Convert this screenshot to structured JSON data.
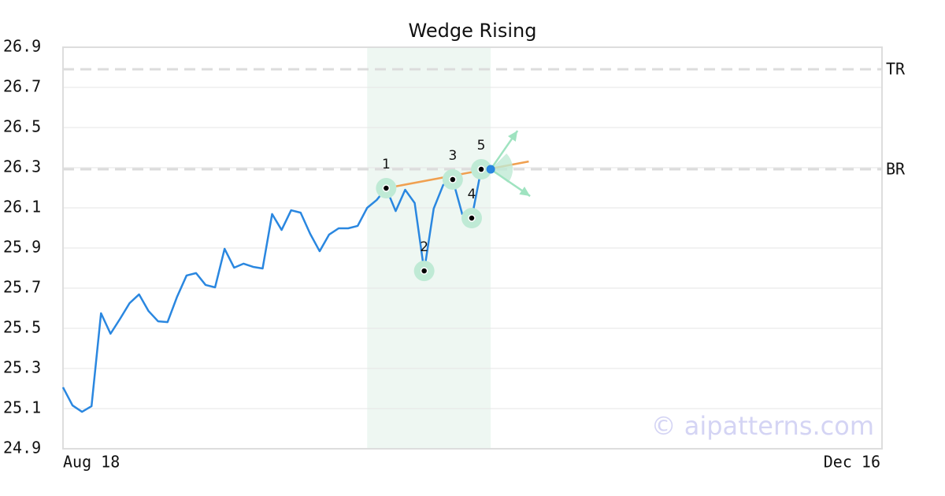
{
  "chart_data": {
    "type": "line",
    "title": "Wedge Rising",
    "watermark": "© aipatterns.com",
    "categories": [
      "Aug 18",
      null,
      null,
      null,
      null,
      null,
      null,
      null,
      null,
      null,
      null,
      null,
      null,
      null,
      null,
      null,
      null,
      null,
      null,
      null,
      null,
      null,
      null,
      null,
      null,
      null,
      null,
      null,
      null,
      null,
      null,
      null,
      null,
      null,
      null,
      null,
      null,
      null,
      null,
      null,
      null,
      null,
      null,
      null,
      null,
      null,
      null,
      null,
      null,
      null,
      null,
      null,
      null,
      null,
      null,
      null,
      null,
      null,
      null,
      null,
      null,
      null,
      null,
      null,
      null,
      null,
      null,
      null,
      null,
      null,
      null,
      null,
      null,
      null,
      null,
      null,
      null,
      null,
      null,
      null,
      null,
      null,
      null,
      null,
      null,
      null,
      "Dec 16"
    ],
    "series": [
      {
        "color": "#2a87e0",
        "values": [
          25.206,
          25.116,
          25.084,
          25.112,
          25.575,
          25.473,
          25.547,
          25.625,
          25.669,
          25.586,
          25.535,
          25.531,
          25.657,
          25.763,
          25.775,
          25.716,
          25.704,
          25.896,
          25.802,
          25.822,
          25.806,
          25.798,
          26.069,
          25.99,
          26.088,
          26.076,
          25.971,
          25.884,
          25.967,
          25.998,
          25.998,
          26.01,
          26.1,
          26.139,
          26.198,
          26.084,
          26.19,
          26.124,
          25.786,
          26.096,
          26.214,
          26.241,
          26.069,
          26.049,
          26.292,
          26.292,
          null,
          null,
          null,
          null,
          null,
          null,
          null,
          null,
          null,
          null,
          null,
          null,
          null,
          null,
          null,
          null,
          null,
          null,
          null,
          null,
          null,
          null,
          null,
          null,
          null,
          null,
          null,
          null,
          null,
          null,
          null,
          null,
          null,
          null,
          null,
          null,
          null,
          null,
          null,
          null,
          null
        ]
      }
    ],
    "ylim": [
      24.9,
      26.9
    ],
    "yticks": [
      24.9,
      25.1,
      25.3,
      25.5,
      25.7,
      25.9,
      26.1,
      26.3,
      26.5,
      26.7,
      26.9
    ],
    "grid": true,
    "highlight_range": [
      32,
      45
    ],
    "levels": [
      {
        "name": "TR",
        "value": 26.79
      },
      {
        "name": "BR",
        "value": 26.292
      }
    ],
    "pattern_points": [
      {
        "label": "1",
        "index": 34
      },
      {
        "label": "2",
        "index": 38
      },
      {
        "label": "3",
        "index": 41
      },
      {
        "label": "4",
        "index": 43
      },
      {
        "label": "5",
        "index": 44
      }
    ],
    "trendline": {
      "x": [
        34,
        49
      ],
      "values": [
        26.198,
        26.331
      ],
      "color": "#f0a050"
    }
  }
}
